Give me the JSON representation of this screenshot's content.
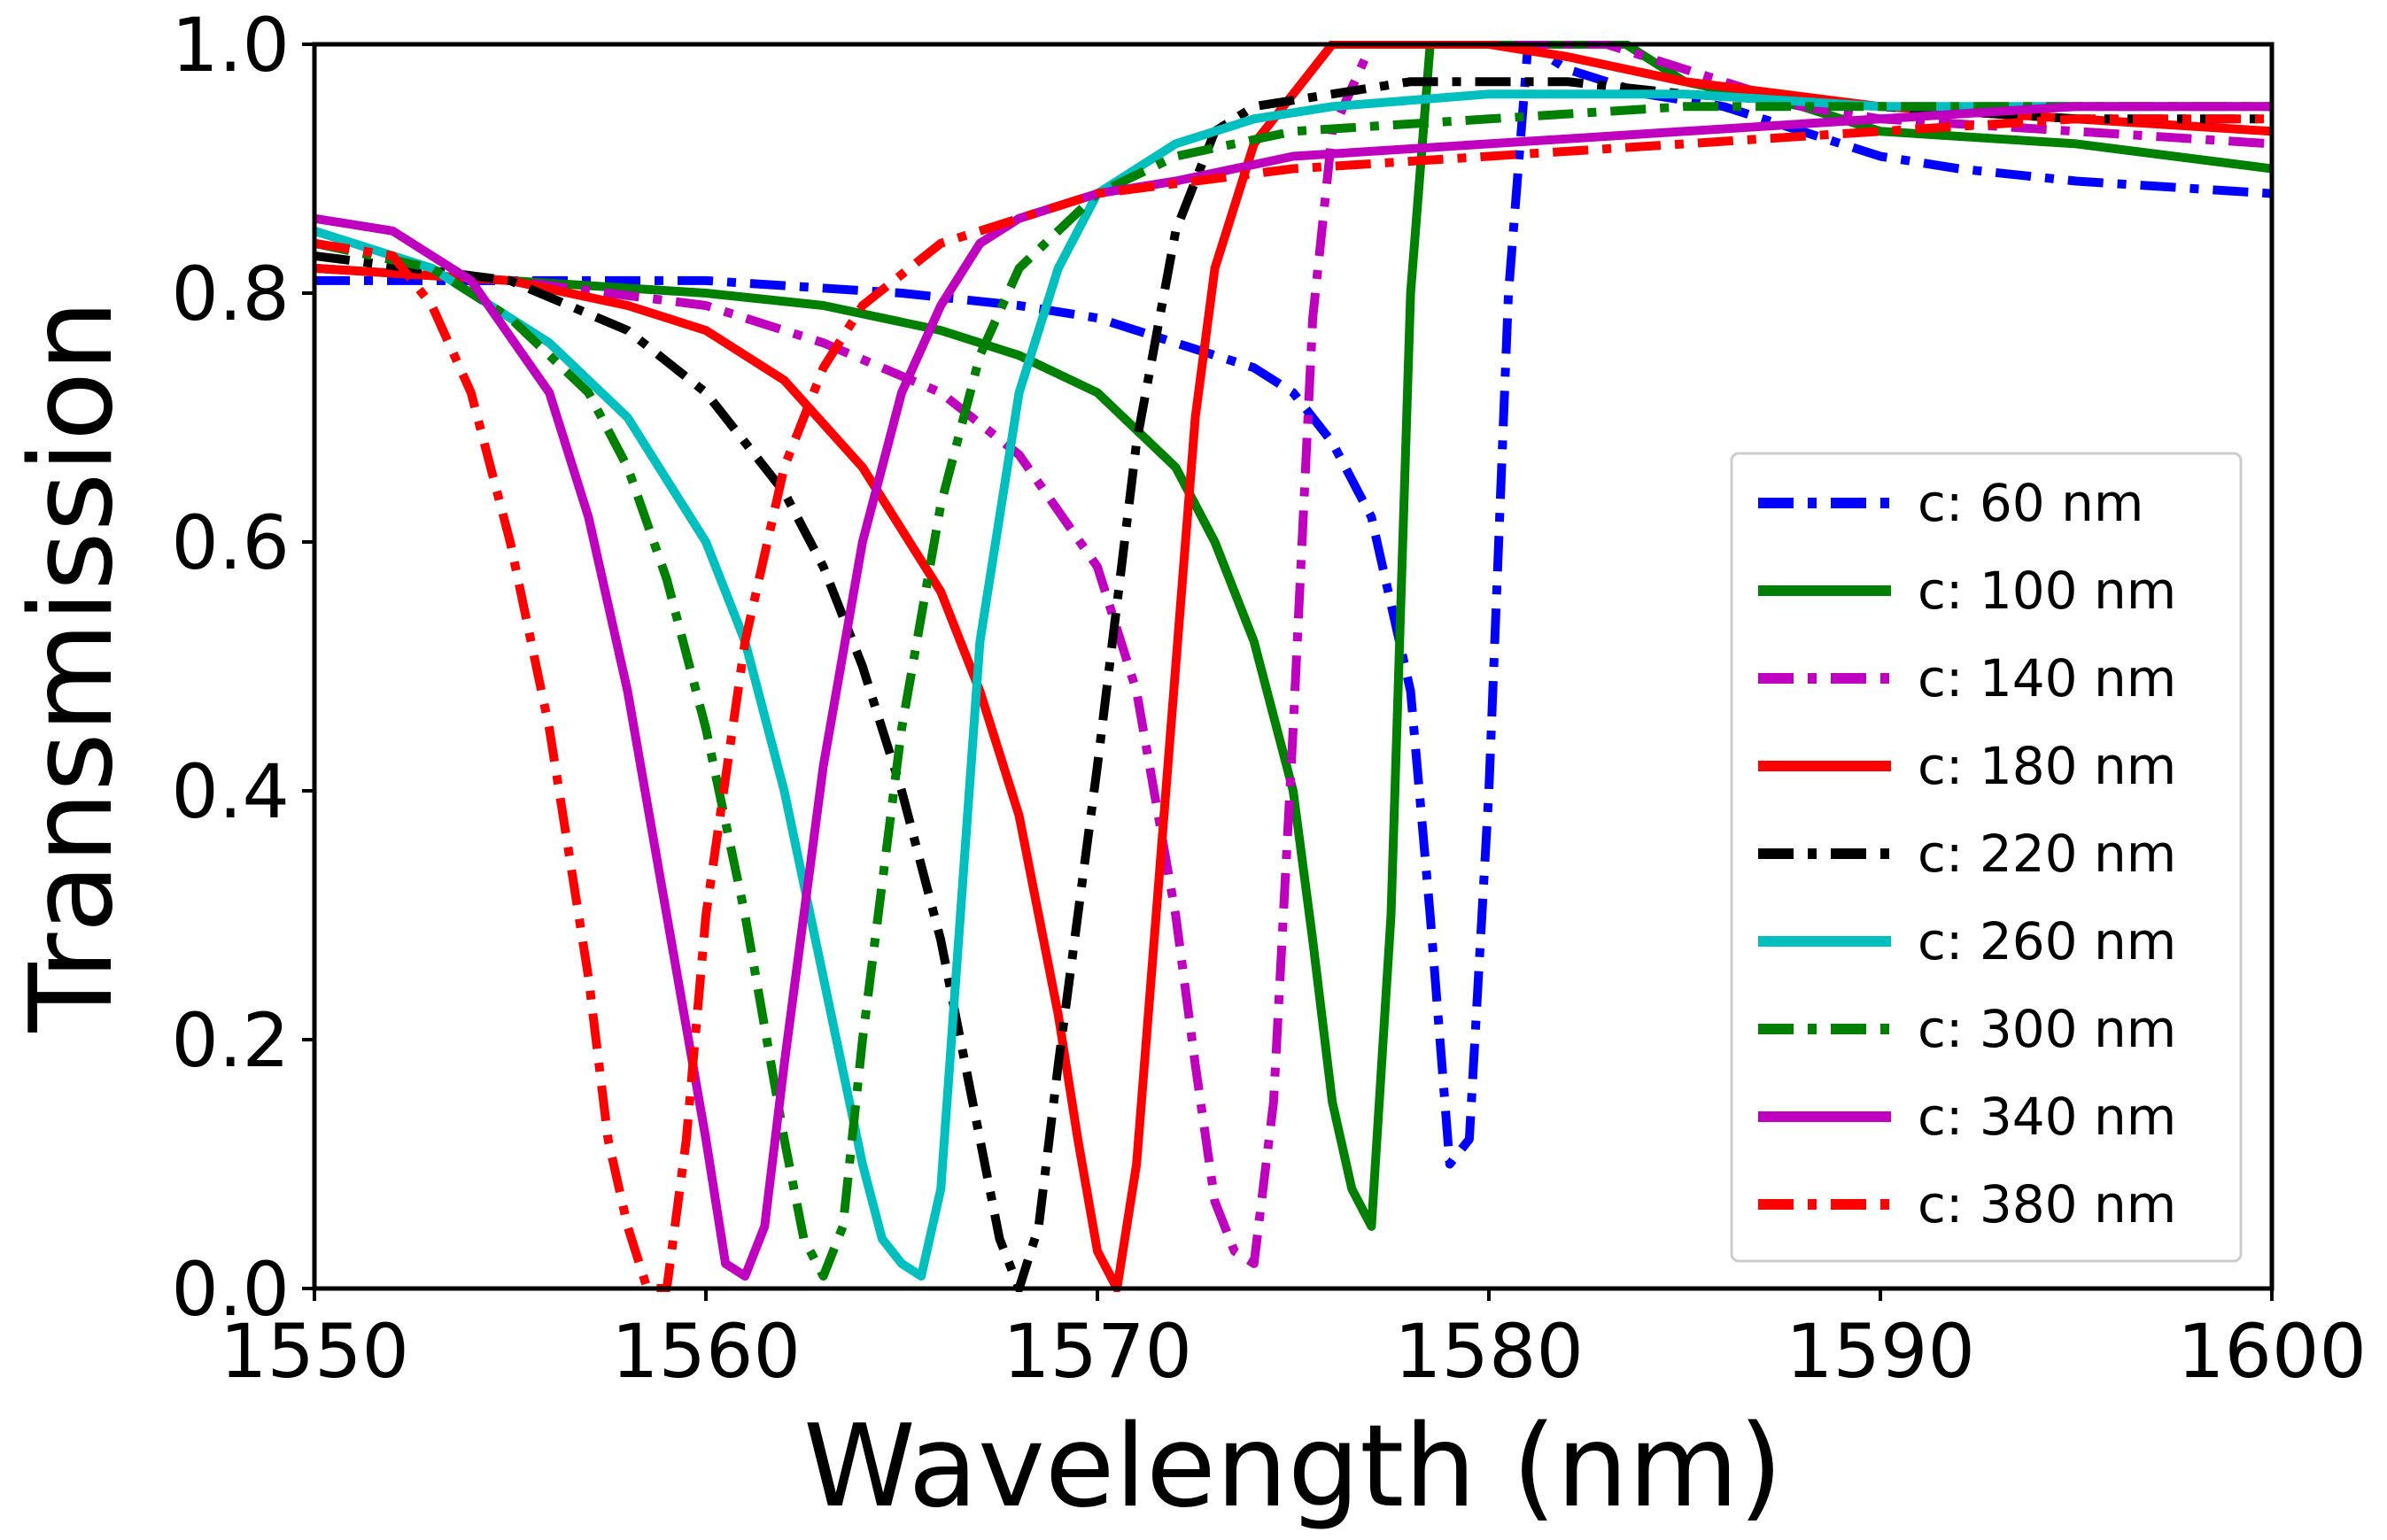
{
  "chart_data": {
    "type": "line",
    "title": "",
    "xlabel": "Wavelength (nm)",
    "ylabel": "Transmission",
    "xlim": [
      1550,
      1600
    ],
    "ylim": [
      0.0,
      1.0
    ],
    "xticks": [
      1550,
      1560,
      1570,
      1580,
      1590,
      1600
    ],
    "xtick_labels": [
      "1550",
      "1560",
      "1570",
      "1580",
      "1590",
      "1600"
    ],
    "yticks": [
      0.0,
      0.2,
      0.4,
      0.6,
      0.8,
      1.0
    ],
    "ytick_labels": [
      "0.0",
      "0.2",
      "0.4",
      "0.6",
      "0.8",
      "1.0"
    ],
    "grid": false,
    "legend_position": "lower-right",
    "series": [
      {
        "name": "c: 60 nm",
        "color": "#0000ff",
        "dash": "dashdot",
        "x": [
          1550,
          1555,
          1560,
          1565,
          1568,
          1570,
          1572,
          1574,
          1575,
          1576,
          1577,
          1578,
          1578.5,
          1579,
          1579.5,
          1580,
          1580.5,
          1581,
          1582,
          1584,
          1586,
          1588,
          1590,
          1592,
          1595,
          1600
        ],
        "y": [
          0.81,
          0.81,
          0.81,
          0.8,
          0.79,
          0.78,
          0.76,
          0.74,
          0.72,
          0.68,
          0.62,
          0.48,
          0.3,
          0.1,
          0.12,
          0.4,
          0.8,
          1.0,
          0.98,
          0.96,
          0.95,
          0.93,
          0.91,
          0.9,
          0.89,
          0.88
        ]
      },
      {
        "name": "c: 100 nm",
        "color": "#008000",
        "dash": "solid",
        "x": [
          1550,
          1555,
          1560,
          1563,
          1566,
          1568,
          1570,
          1572,
          1573,
          1574,
          1575,
          1575.5,
          1576,
          1576.5,
          1577,
          1577.5,
          1578,
          1578.5,
          1579,
          1580,
          1582,
          1583.5,
          1585,
          1588,
          1590,
          1595,
          1600
        ],
        "y": [
          0.82,
          0.81,
          0.8,
          0.79,
          0.77,
          0.75,
          0.72,
          0.66,
          0.6,
          0.52,
          0.4,
          0.28,
          0.15,
          0.08,
          0.05,
          0.3,
          0.8,
          1.0,
          1.0,
          1.0,
          1.0,
          1.0,
          0.97,
          0.95,
          0.93,
          0.92,
          0.9
        ]
      },
      {
        "name": "c: 140 nm",
        "color": "#bf00bf",
        "dash": "dashdot",
        "x": [
          1550,
          1555,
          1560,
          1563,
          1566,
          1568,
          1570,
          1571,
          1572,
          1572.5,
          1573,
          1573.5,
          1574,
          1574.5,
          1575,
          1575.5,
          1576,
          1577,
          1578,
          1580,
          1582,
          1583,
          1584,
          1588,
          1590,
          1595,
          1600
        ],
        "y": [
          0.82,
          0.81,
          0.79,
          0.76,
          0.72,
          0.67,
          0.58,
          0.48,
          0.3,
          0.18,
          0.07,
          0.03,
          0.02,
          0.15,
          0.45,
          0.78,
          0.93,
          1.0,
          1.0,
          1.0,
          1.0,
          1.0,
          0.99,
          0.95,
          0.94,
          0.93,
          0.92
        ]
      },
      {
        "name": "c: 180 nm",
        "color": "#ff0000",
        "dash": "solid",
        "x": [
          1550,
          1555,
          1558,
          1560,
          1562,
          1564,
          1566,
          1567,
          1568,
          1569,
          1569.5,
          1570,
          1570.5,
          1571,
          1571.5,
          1572,
          1572.5,
          1573,
          1574,
          1576,
          1578,
          1580,
          1582,
          1585,
          1590,
          1595,
          1600
        ],
        "y": [
          0.82,
          0.81,
          0.79,
          0.77,
          0.73,
          0.66,
          0.56,
          0.48,
          0.38,
          0.22,
          0.12,
          0.03,
          0.0,
          0.1,
          0.3,
          0.5,
          0.7,
          0.82,
          0.92,
          1.0,
          1.0,
          1.0,
          0.99,
          0.97,
          0.95,
          0.94,
          0.93
        ]
      },
      {
        "name": "c: 220 nm",
        "color": "#000000",
        "dash": "dashdot",
        "x": [
          1550,
          1555,
          1558,
          1560,
          1562,
          1563,
          1564,
          1565,
          1566,
          1567,
          1567.5,
          1568,
          1568.5,
          1569,
          1570,
          1571,
          1572,
          1573,
          1574,
          1576,
          1578,
          1580,
          1582,
          1585,
          1590,
          1595,
          1600
        ],
        "y": [
          0.83,
          0.81,
          0.77,
          0.72,
          0.64,
          0.58,
          0.5,
          0.4,
          0.28,
          0.12,
          0.04,
          0.0,
          0.05,
          0.18,
          0.42,
          0.68,
          0.85,
          0.93,
          0.95,
          0.96,
          0.97,
          0.97,
          0.97,
          0.96,
          0.95,
          0.94,
          0.94
        ]
      },
      {
        "name": "c: 260 nm",
        "color": "#00bfbf",
        "dash": "solid",
        "x": [
          1550,
          1553,
          1556,
          1558,
          1560,
          1561,
          1562,
          1563,
          1564,
          1564.5,
          1565,
          1565.5,
          1566,
          1566.5,
          1567,
          1568,
          1569,
          1570,
          1572,
          1574,
          1576,
          1580,
          1585,
          1590,
          1595,
          1600
        ],
        "y": [
          0.85,
          0.82,
          0.76,
          0.7,
          0.6,
          0.52,
          0.4,
          0.25,
          0.1,
          0.04,
          0.02,
          0.01,
          0.08,
          0.3,
          0.52,
          0.72,
          0.82,
          0.88,
          0.92,
          0.94,
          0.95,
          0.96,
          0.96,
          0.95,
          0.95,
          0.95
        ]
      },
      {
        "name": "c: 300 nm",
        "color": "#008000",
        "dash": "dashdot",
        "x": [
          1550,
          1553,
          1555,
          1557,
          1558,
          1559,
          1560,
          1561,
          1562,
          1562.5,
          1563,
          1563.5,
          1564,
          1565,
          1566,
          1567,
          1568,
          1570,
          1572,
          1575,
          1580,
          1585,
          1590,
          1595,
          1600
        ],
        "y": [
          0.84,
          0.82,
          0.78,
          0.72,
          0.66,
          0.57,
          0.45,
          0.3,
          0.12,
          0.04,
          0.01,
          0.05,
          0.2,
          0.45,
          0.63,
          0.75,
          0.82,
          0.88,
          0.91,
          0.93,
          0.94,
          0.95,
          0.95,
          0.95,
          0.95
        ]
      },
      {
        "name": "c: 340 nm",
        "color": "#bf00bf",
        "dash": "solid",
        "x": [
          1550,
          1552,
          1554,
          1556,
          1557,
          1558,
          1559,
          1560,
          1560.5,
          1561,
          1561.5,
          1562,
          1563,
          1564,
          1565,
          1566,
          1567,
          1568,
          1570,
          1572,
          1575,
          1580,
          1585,
          1590,
          1595,
          1600
        ],
        "y": [
          0.86,
          0.85,
          0.81,
          0.72,
          0.62,
          0.48,
          0.3,
          0.12,
          0.02,
          0.01,
          0.05,
          0.18,
          0.42,
          0.6,
          0.72,
          0.79,
          0.84,
          0.86,
          0.88,
          0.89,
          0.91,
          0.92,
          0.93,
          0.94,
          0.95,
          0.95
        ]
      },
      {
        "name": "c: 380 nm",
        "color": "#ff0000",
        "dash": "dashdot",
        "x": [
          1550,
          1552,
          1553,
          1554,
          1555,
          1556,
          1557,
          1557.5,
          1558,
          1558.5,
          1559,
          1559.5,
          1560,
          1561,
          1562,
          1563,
          1564,
          1566,
          1568,
          1570,
          1575,
          1580,
          1585,
          1590,
          1595,
          1600
        ],
        "y": [
          0.84,
          0.83,
          0.79,
          0.72,
          0.6,
          0.45,
          0.25,
          0.12,
          0.05,
          0.0,
          0.0,
          0.12,
          0.3,
          0.52,
          0.66,
          0.74,
          0.79,
          0.84,
          0.86,
          0.88,
          0.9,
          0.91,
          0.92,
          0.93,
          0.94,
          0.94
        ]
      }
    ]
  }
}
